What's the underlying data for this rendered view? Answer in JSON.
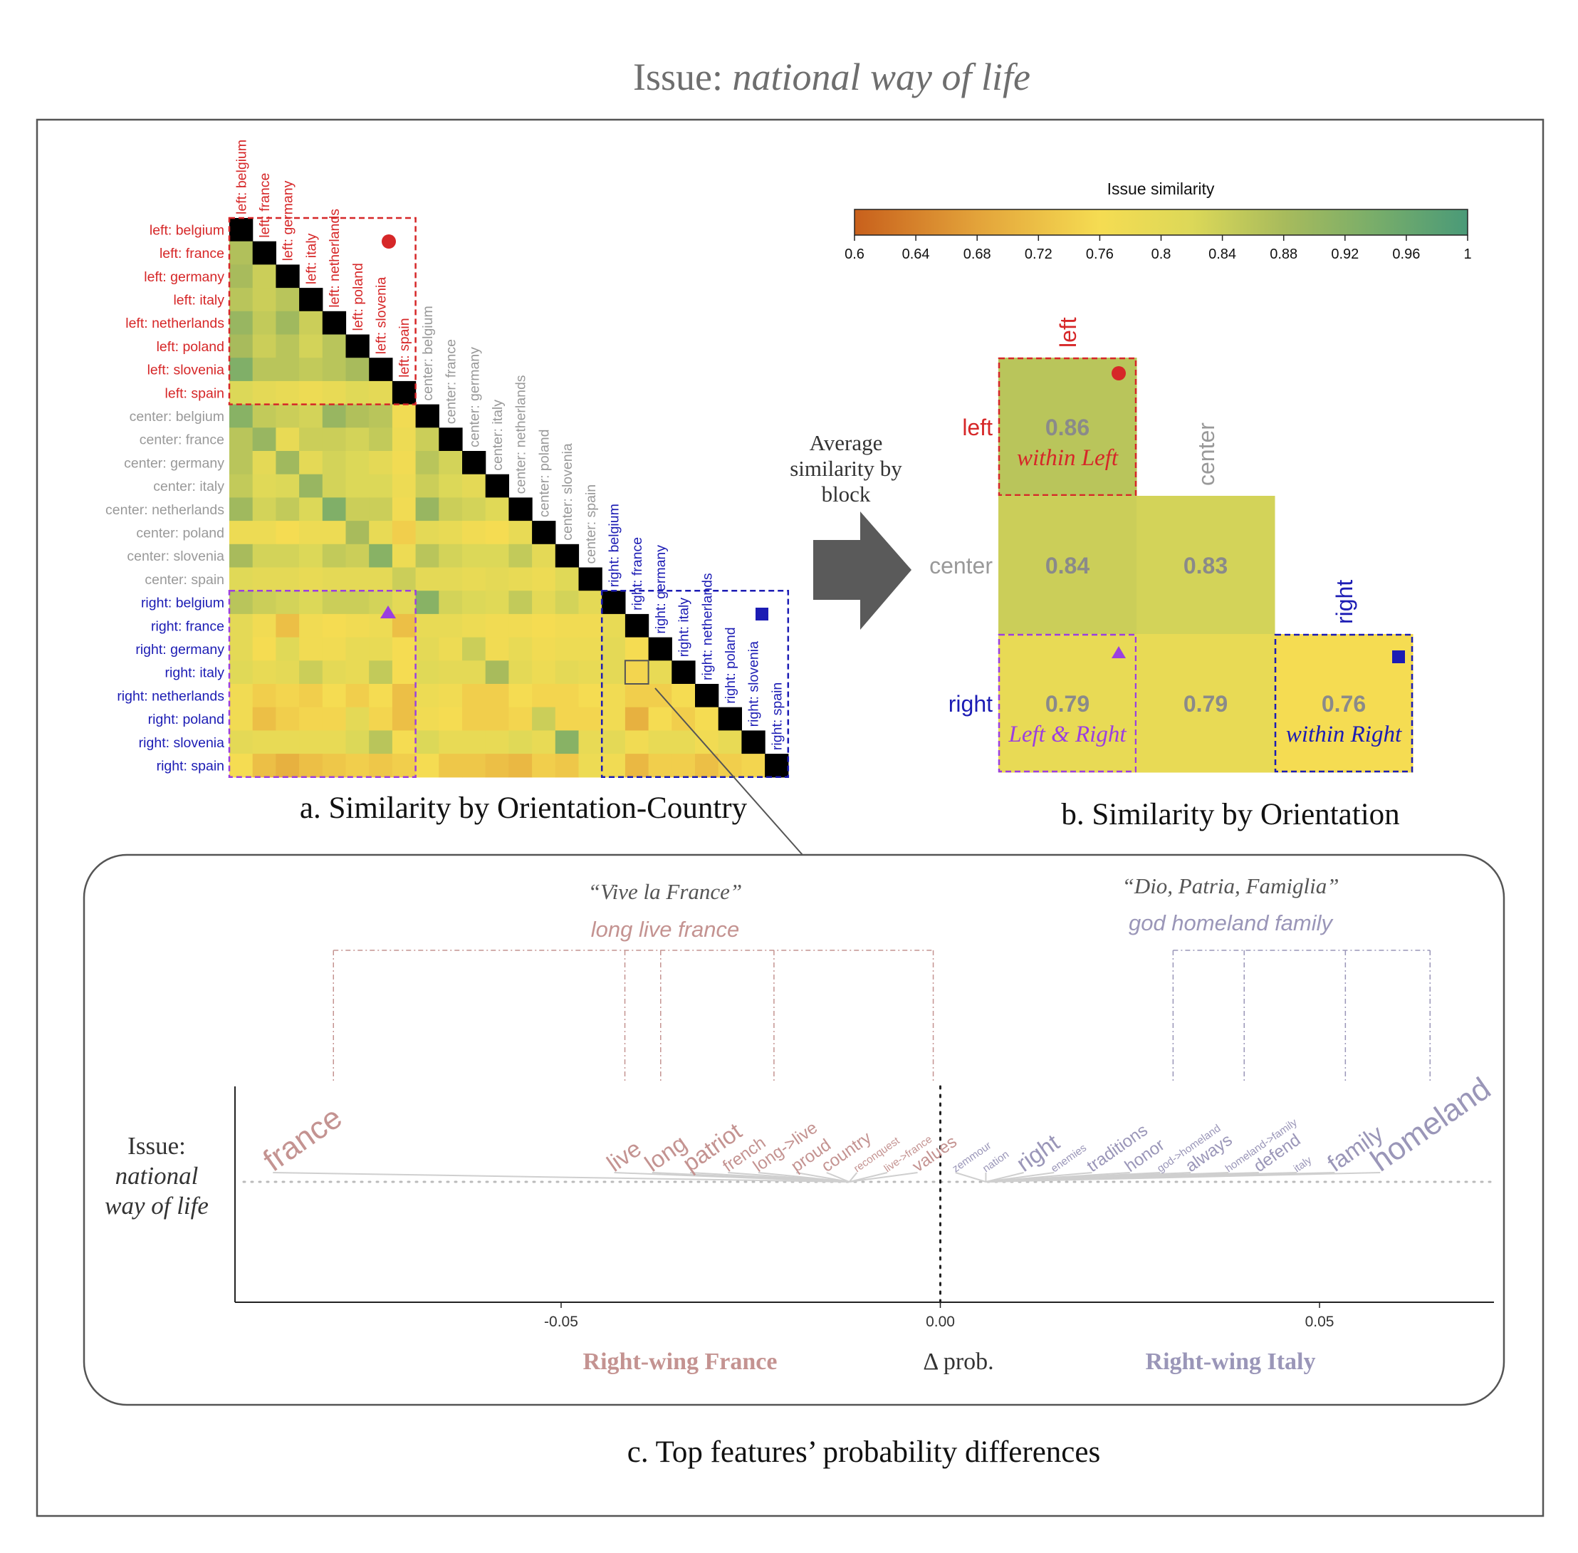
{
  "page_title": {
    "prefix": "Issue: ",
    "emph": "national way of life"
  },
  "colorbar": {
    "title": "Issue similarity",
    "range": [
      0.6,
      1.0
    ],
    "ticks": [
      "0.6",
      "0.64",
      "0.68",
      "0.72",
      "0.76",
      "0.8",
      "0.84",
      "0.88",
      "0.92",
      "0.96",
      "1"
    ],
    "stops": [
      {
        "v": 0.6,
        "c": "#c8601c"
      },
      {
        "v": 0.68,
        "c": "#e3a33a"
      },
      {
        "v": 0.76,
        "c": "#f5dc52"
      },
      {
        "v": 0.82,
        "c": "#dcd858"
      },
      {
        "v": 0.88,
        "c": "#a8bb5c"
      },
      {
        "v": 0.94,
        "c": "#78ad6a"
      },
      {
        "v": 1.0,
        "c": "#4a9a78"
      }
    ]
  },
  "colors": {
    "left": "#d62728",
    "center": "#999999",
    "right": "#1c1cb4",
    "mixed": "#9b3fe0",
    "diag": "#000000",
    "france": "#c49391",
    "italy": "#9a96b8"
  },
  "panel_a": {
    "caption": "a.   Similarity by Orientation-Country",
    "labels": [
      "left: belgium",
      "left: france",
      "left: germany",
      "left: italy",
      "left: netherlands",
      "left: poland",
      "left: slovenia",
      "left: spain",
      "center: belgium",
      "center: france",
      "center: germany",
      "center: italy",
      "center: netherlands",
      "center: poland",
      "center: slovenia",
      "center: spain",
      "right: belgium",
      "right: france",
      "right: germany",
      "right: italy",
      "right: netherlands",
      "right: poland",
      "right: slovenia",
      "right: spain"
    ],
    "groups": [
      "left",
      "left",
      "left",
      "left",
      "left",
      "left",
      "left",
      "left",
      "center",
      "center",
      "center",
      "center",
      "center",
      "center",
      "center",
      "center",
      "right",
      "right",
      "right",
      "right",
      "right",
      "right",
      "right",
      "right"
    ]
  },
  "arrow_text": [
    "Average",
    "similarity by",
    "block"
  ],
  "panel_b": {
    "caption": "b.   Similarity by Orientation",
    "row_labels": [
      "left",
      "center",
      "right"
    ],
    "col_labels": [
      "left",
      "center",
      "right"
    ],
    "cells": [
      {
        "row": 0,
        "col": 0,
        "value": 0.86,
        "label": "0.86",
        "note": "within Left",
        "group": "left"
      },
      {
        "row": 1,
        "col": 0,
        "value": 0.84,
        "label": "0.84",
        "note": "",
        "group": ""
      },
      {
        "row": 1,
        "col": 1,
        "value": 0.83,
        "label": "0.83",
        "note": "",
        "group": ""
      },
      {
        "row": 2,
        "col": 0,
        "value": 0.79,
        "label": "0.79",
        "note": "Left & Right",
        "group": "mixed"
      },
      {
        "row": 2,
        "col": 1,
        "value": 0.79,
        "label": "0.79",
        "note": "",
        "group": ""
      },
      {
        "row": 2,
        "col": 2,
        "value": 0.76,
        "label": "0.76",
        "note": "within Right",
        "group": "right"
      }
    ]
  },
  "panel_c": {
    "caption": "c.   Top features’ probability differences",
    "y_label": [
      "Issue:",
      "national",
      "way of life"
    ],
    "x_title": "Δ prob.",
    "left_side_label": "Right-wing France",
    "right_side_label": "Right-wing Italy",
    "quote_france": "“Vive la France”",
    "translation_france": "long live france",
    "quote_italy": "“Dio, Patria, Famiglia”",
    "translation_italy": "god homeland family",
    "x_ticks": [
      "-0.05",
      "0.00",
      "0.05"
    ]
  },
  "chart_data": [
    {
      "type": "heatmap",
      "title": "Similarity by Orientation-Country",
      "value_range": [
        0.6,
        1.0
      ],
      "rows_note": "row i lists similarity with columns 0..i-1 (lower triangle); diagonal is black",
      "values": [
        [],
        [
          0.87
        ],
        [
          0.88,
          0.84
        ],
        [
          0.86,
          0.84,
          0.86
        ],
        [
          0.9,
          0.85,
          0.89,
          0.84
        ],
        [
          0.88,
          0.84,
          0.86,
          0.83,
          0.86
        ],
        [
          0.93,
          0.86,
          0.86,
          0.85,
          0.86,
          0.88
        ],
        [
          0.82,
          0.8,
          0.79,
          0.78,
          0.79,
          0.81,
          0.8
        ],
        [
          0.92,
          0.85,
          0.84,
          0.83,
          0.9,
          0.87,
          0.86,
          0.77
        ],
        [
          0.86,
          0.9,
          0.79,
          0.84,
          0.84,
          0.83,
          0.85,
          0.78,
          0.84
        ],
        [
          0.86,
          0.8,
          0.89,
          0.8,
          0.83,
          0.82,
          0.8,
          0.77,
          0.86,
          0.83
        ],
        [
          0.85,
          0.81,
          0.82,
          0.9,
          0.83,
          0.82,
          0.82,
          0.78,
          0.84,
          0.82,
          0.8
        ],
        [
          0.89,
          0.83,
          0.85,
          0.82,
          0.93,
          0.84,
          0.84,
          0.77,
          0.9,
          0.84,
          0.83,
          0.81
        ],
        [
          0.78,
          0.78,
          0.76,
          0.78,
          0.78,
          0.88,
          0.79,
          0.74,
          0.8,
          0.79,
          0.77,
          0.76,
          0.79
        ],
        [
          0.88,
          0.83,
          0.83,
          0.82,
          0.85,
          0.84,
          0.92,
          0.78,
          0.86,
          0.83,
          0.82,
          0.82,
          0.85,
          0.8
        ],
        [
          0.81,
          0.8,
          0.8,
          0.79,
          0.8,
          0.8,
          0.8,
          0.84,
          0.8,
          0.8,
          0.79,
          0.8,
          0.79,
          0.78,
          0.81
        ],
        [
          0.86,
          0.84,
          0.83,
          0.82,
          0.84,
          0.84,
          0.83,
          0.8,
          0.92,
          0.83,
          0.82,
          0.81,
          0.85,
          0.8,
          0.83,
          0.8
        ],
        [
          0.8,
          0.77,
          0.72,
          0.77,
          0.76,
          0.77,
          0.78,
          0.72,
          0.79,
          0.79,
          0.78,
          0.77,
          0.77,
          0.76,
          0.77,
          0.77,
          0.79
        ],
        [
          0.8,
          0.76,
          0.81,
          0.77,
          0.77,
          0.79,
          0.79,
          0.76,
          0.8,
          0.78,
          0.84,
          0.77,
          0.79,
          0.77,
          0.78,
          0.78,
          0.8,
          0.76
        ],
        [
          0.81,
          0.79,
          0.8,
          0.84,
          0.8,
          0.79,
          0.85,
          0.76,
          0.81,
          0.8,
          0.8,
          0.88,
          0.8,
          0.78,
          0.8,
          0.79,
          0.8,
          0.75,
          0.79
        ],
        [
          0.77,
          0.74,
          0.75,
          0.74,
          0.76,
          0.74,
          0.76,
          0.72,
          0.78,
          0.77,
          0.74,
          0.74,
          0.76,
          0.75,
          0.75,
          0.76,
          0.77,
          0.74,
          0.74,
          0.76
        ],
        [
          0.77,
          0.72,
          0.74,
          0.75,
          0.75,
          0.8,
          0.75,
          0.72,
          0.77,
          0.76,
          0.74,
          0.74,
          0.75,
          0.84,
          0.75,
          0.75,
          0.77,
          0.7,
          0.76,
          0.74,
          0.76
        ],
        [
          0.8,
          0.79,
          0.79,
          0.79,
          0.79,
          0.82,
          0.86,
          0.76,
          0.82,
          0.79,
          0.79,
          0.79,
          0.81,
          0.79,
          0.92,
          0.79,
          0.8,
          0.77,
          0.79,
          0.79,
          0.77,
          0.79
        ],
        [
          0.76,
          0.72,
          0.7,
          0.72,
          0.73,
          0.74,
          0.73,
          0.74,
          0.76,
          0.73,
          0.73,
          0.72,
          0.71,
          0.74,
          0.73,
          0.78,
          0.77,
          0.71,
          0.74,
          0.74,
          0.72,
          0.74,
          0.75
        ]
      ]
    },
    {
      "type": "heatmap",
      "title": "Similarity by Orientation",
      "categories": [
        "left",
        "center",
        "right"
      ],
      "values": [
        [
          0.86
        ],
        [
          0.84,
          0.83
        ],
        [
          0.79,
          0.79,
          0.76
        ]
      ]
    },
    {
      "type": "scatter",
      "title": "Top features’ probability differences",
      "xlabel": "Δ prob.",
      "xlim": [
        -0.093,
        0.073
      ],
      "points": [
        {
          "word": "france",
          "x": -0.088,
          "size": 3,
          "side": "france"
        },
        {
          "word": "live",
          "x": -0.043,
          "size": 2,
          "side": "france"
        },
        {
          "word": "long",
          "x": -0.038,
          "size": 2,
          "side": "france"
        },
        {
          "word": "patriot",
          "x": -0.033,
          "size": 2,
          "side": "france"
        },
        {
          "word": "french",
          "x": -0.028,
          "size": 1,
          "side": "france"
        },
        {
          "word": "long->live",
          "x": -0.024,
          "size": 1,
          "side": "france"
        },
        {
          "word": "proud",
          "x": -0.019,
          "size": 1,
          "side": "france"
        },
        {
          "word": "country",
          "x": -0.015,
          "size": 1,
          "side": "france"
        },
        {
          "word": "reconquest",
          "x": -0.011,
          "size": 0,
          "side": "france"
        },
        {
          "word": "live->france",
          "x": -0.007,
          "size": 0,
          "side": "france"
        },
        {
          "word": "values",
          "x": -0.003,
          "size": 1,
          "side": "france"
        },
        {
          "word": "zemmour",
          "x": 0.002,
          "size": 0,
          "side": "italy"
        },
        {
          "word": "nation",
          "x": 0.006,
          "size": 0,
          "side": "italy"
        },
        {
          "word": "right",
          "x": 0.011,
          "size": 2,
          "side": "italy"
        },
        {
          "word": "enemies",
          "x": 0.015,
          "size": 0,
          "side": "italy"
        },
        {
          "word": "traditions",
          "x": 0.02,
          "size": 1,
          "side": "italy"
        },
        {
          "word": "honor",
          "x": 0.025,
          "size": 1,
          "side": "italy"
        },
        {
          "word": "god->homeland",
          "x": 0.029,
          "size": 0,
          "side": "italy"
        },
        {
          "word": "always",
          "x": 0.033,
          "size": 1,
          "side": "italy"
        },
        {
          "word": "homeland->family",
          "x": 0.038,
          "size": 0,
          "side": "italy"
        },
        {
          "word": "defend",
          "x": 0.042,
          "size": 1,
          "side": "italy"
        },
        {
          "word": "italy",
          "x": 0.047,
          "size": 0,
          "side": "italy"
        },
        {
          "word": "family",
          "x": 0.052,
          "size": 2,
          "side": "italy"
        },
        {
          "word": "homeland",
          "x": 0.058,
          "size": 3,
          "side": "italy"
        }
      ]
    }
  ]
}
